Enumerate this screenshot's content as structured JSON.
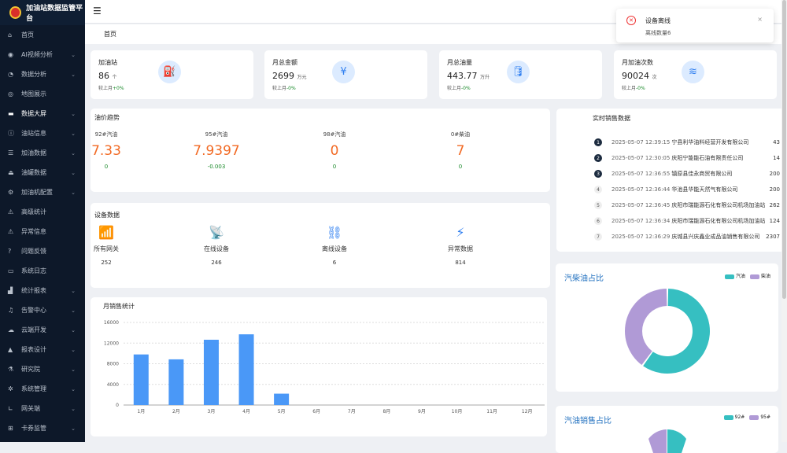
{
  "app": {
    "title": "加油站数据监管平台"
  },
  "sidebar": {
    "items": [
      {
        "label": "首页",
        "icon": "home",
        "chev": false
      },
      {
        "label": "AI视频分析",
        "icon": "camera",
        "chev": true
      },
      {
        "label": "数据分析",
        "icon": "chart-pie",
        "chev": true
      },
      {
        "label": "地图展示",
        "icon": "map",
        "chev": false
      },
      {
        "label": "数据大屏",
        "icon": "monitor",
        "chev": true,
        "active": true
      },
      {
        "label": "油站信息",
        "icon": "info",
        "chev": true
      },
      {
        "label": "加油数据",
        "icon": "list",
        "chev": true
      },
      {
        "label": "油罐数据",
        "icon": "tank",
        "chev": true
      },
      {
        "label": "加油机配置",
        "icon": "config",
        "chev": true
      },
      {
        "label": "高级统计",
        "icon": "warning",
        "chev": false
      },
      {
        "label": "异常信息",
        "icon": "alert",
        "chev": false
      },
      {
        "label": "问题反馈",
        "icon": "question",
        "chev": false
      },
      {
        "label": "系统日志",
        "icon": "log",
        "chev": false
      },
      {
        "label": "统计报表",
        "icon": "bar",
        "chev": true
      },
      {
        "label": "告警中心",
        "icon": "bell",
        "chev": true
      },
      {
        "label": "云端开发",
        "icon": "cloud",
        "chev": true
      },
      {
        "label": "报表设计",
        "icon": "design",
        "chev": true
      },
      {
        "label": "研究院",
        "icon": "lab",
        "chev": true
      },
      {
        "label": "系统管理",
        "icon": "gear",
        "chev": true
      },
      {
        "label": "网关端",
        "icon": "gateway",
        "chev": true
      },
      {
        "label": "卡券监管",
        "icon": "card",
        "chev": true
      }
    ]
  },
  "header": {
    "breadcrumb": "首页"
  },
  "cards": [
    {
      "title": "加油站",
      "value": "86",
      "unit": "个",
      "cmp": "较上月",
      "chg": "+0%",
      "icon": "fuel-pump"
    },
    {
      "title": "月总金额",
      "value": "2699",
      "unit": "万元",
      "cmp": "较上月",
      "chg": "-0%",
      "icon": "money-bag"
    },
    {
      "title": "月总油量",
      "value": "443.77",
      "unit": "万升",
      "cmp": "较上月",
      "chg": "-0%",
      "icon": "oil-can"
    },
    {
      "title": "月加油次数",
      "value": "90024",
      "unit": "次",
      "cmp": "较上月",
      "chg": "-0%",
      "icon": "layers"
    }
  ],
  "prices": {
    "title": "油价趋势",
    "items": [
      {
        "label": "92#汽油",
        "value": "7.33",
        "chg": "0"
      },
      {
        "label": "95#汽油",
        "value": "7.9397",
        "chg": "-0.003"
      },
      {
        "label": "98#汽油",
        "value": "0",
        "chg": "0"
      },
      {
        "label": "0#柴油",
        "value": "7",
        "chg": "0"
      }
    ]
  },
  "devices": {
    "title": "设备数据",
    "items": [
      {
        "label": "所有网关",
        "value": "252",
        "icon": "router"
      },
      {
        "label": "在线设备",
        "value": "246",
        "icon": "wifi-router"
      },
      {
        "label": "离线设备",
        "value": "6",
        "icon": "broken-link"
      },
      {
        "label": "异常数据",
        "value": "814",
        "icon": "alarm-light"
      }
    ]
  },
  "realtime": {
    "title": "实时销售数据",
    "rows": [
      {
        "rank": "1",
        "time": "2025-05-07 12:39:15",
        "name": "宁县利华油料经营开发有限公司",
        "value": "43"
      },
      {
        "rank": "2",
        "time": "2025-05-07 12:30:05",
        "name": "庆阳宁能能石油有限责任公司",
        "value": "14"
      },
      {
        "rank": "3",
        "time": "2025-05-07 12:36:55",
        "name": "镇原县佳永商贸有限公司",
        "value": "200"
      },
      {
        "rank": "4",
        "time": "2025-05-07 12:36:44",
        "name": "华池县华能天然气有限公司",
        "value": "200"
      },
      {
        "rank": "5",
        "time": "2025-05-07 12:36:45",
        "name": "庆阳市瑞能源石化有限公司机场加油站",
        "value": "262"
      },
      {
        "rank": "6",
        "time": "2025-05-07 12:36:34",
        "name": "庆阳市瑞能源石化有限公司机场加油站",
        "value": "124"
      },
      {
        "rank": "7",
        "time": "2025-05-07 12:36:29",
        "name": "庆城县兴庆鑫业成品油销售有限公司",
        "value": "2307"
      }
    ]
  },
  "chart_data": [
    {
      "type": "bar",
      "title": "月销售统计",
      "categories": [
        "1月",
        "2月",
        "3月",
        "4月",
        "5月",
        "6月",
        "7月",
        "8月",
        "9月",
        "10月",
        "11月",
        "12月"
      ],
      "values": [
        9800,
        8850,
        12650,
        13700,
        2200,
        0,
        0,
        0,
        0,
        0,
        0,
        0
      ],
      "ylim": [
        0,
        16000
      ],
      "yticks": [
        "0",
        "4000",
        "8000",
        "12000",
        "16000"
      ],
      "grid": true,
      "color": "#4a98f7"
    },
    {
      "type": "pie",
      "title": "汽柴油占比",
      "categories": [
        "汽油",
        "柴油"
      ],
      "values": [
        60,
        40
      ],
      "colors": [
        "#36bfc1",
        "#b09ad6"
      ],
      "legend": "top-right"
    },
    {
      "type": "pie",
      "title": "汽油销售占比",
      "categories": [
        "92#",
        "95#"
      ],
      "colors": [
        "#36bfc1",
        "#b09ad6"
      ],
      "legend": "top-right"
    }
  ],
  "toast": {
    "title": "设备离线",
    "message": "离线数量6"
  }
}
